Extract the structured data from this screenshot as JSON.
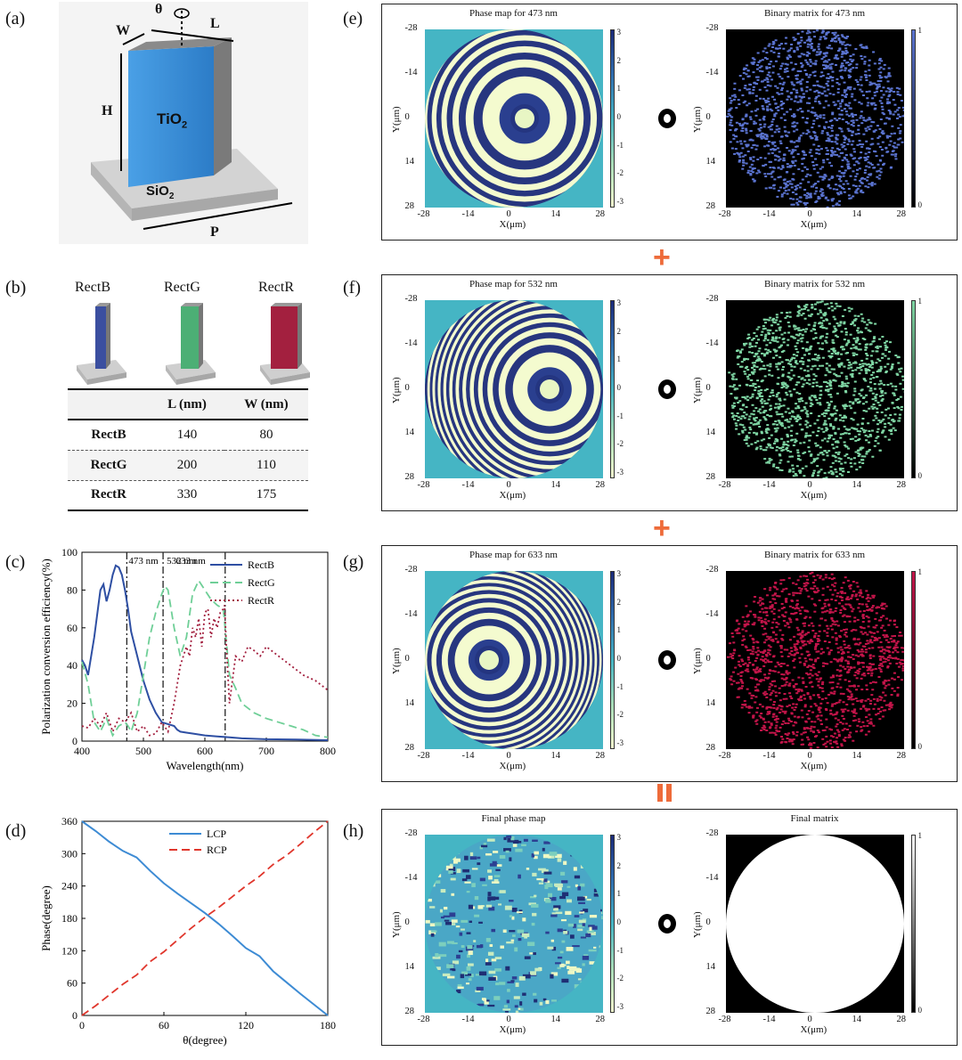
{
  "panel_labels": {
    "a": "(a)",
    "b": "(b)",
    "c": "(c)",
    "d": "(d)",
    "e": "(e)",
    "f": "(f)",
    "g": "(g)",
    "h": "(h)"
  },
  "panel_a": {
    "theta": "θ",
    "w": "W",
    "l": "L",
    "h": "H",
    "tio2_main": "TiO",
    "tio2_sub": "2",
    "sio2_main": "SiO",
    "sio2_sub": "2",
    "p": "P"
  },
  "panel_b": {
    "pillars": [
      "RectB",
      "RectG",
      "RectR"
    ],
    "colors": [
      "#3b4fa0",
      "#4caf75",
      "#a3203f"
    ],
    "table": {
      "headers": [
        "",
        "L (nm)",
        "W (nm)"
      ],
      "rows": [
        {
          "name": "RectB",
          "l": "140",
          "w": "80"
        },
        {
          "name": "RectG",
          "l": "200",
          "w": "110"
        },
        {
          "name": "RectR",
          "l": "330",
          "w": "175"
        }
      ]
    }
  },
  "chart_c": {
    "type": "line",
    "xlabel": "Wavelength(nm)",
    "ylabel": "Polarization conversion efficiency(%)",
    "xlim": [
      400,
      800
    ],
    "ylim": [
      0,
      100
    ],
    "xticks": [
      "400",
      "500",
      "600",
      "700",
      "800"
    ],
    "yticks": [
      "0",
      "20",
      "40",
      "60",
      "80",
      "100"
    ],
    "markers": [
      {
        "x": 473,
        "label": "473 nm"
      },
      {
        "x": 532,
        "label": "532 nm"
      },
      {
        "x": 633,
        "label": "633 nm"
      }
    ],
    "series": [
      {
        "name": "RectB",
        "color": "#2e4fa3",
        "style": "solid",
        "x": [
          400,
          405,
          410,
          420,
          430,
          435,
          440,
          445,
          450,
          455,
          460,
          465,
          470,
          475,
          480,
          490,
          500,
          510,
          520,
          530,
          540,
          550,
          555,
          560,
          570,
          580,
          600,
          620,
          640,
          660,
          700,
          750,
          800
        ],
        "y": [
          43,
          40,
          35,
          55,
          80,
          83,
          74,
          80,
          88,
          93,
          92,
          88,
          80,
          70,
          58,
          45,
          32,
          22,
          15,
          10,
          9,
          8,
          6,
          5,
          4.5,
          4,
          3,
          2.5,
          2,
          1.5,
          1,
          0.8,
          0.5
        ]
      },
      {
        "name": "RectG",
        "color": "#6fcf97",
        "style": "dash",
        "x": [
          400,
          410,
          420,
          430,
          440,
          450,
          460,
          470,
          475,
          480,
          490,
          500,
          510,
          520,
          530,
          535,
          540,
          550,
          560,
          570,
          580,
          590,
          600,
          610,
          620,
          630,
          640,
          650,
          660,
          680,
          700,
          720,
          740,
          760,
          780,
          800
        ],
        "y": [
          42,
          30,
          10,
          5,
          12,
          3,
          8,
          10,
          8,
          5,
          15,
          35,
          55,
          68,
          78,
          82,
          80,
          60,
          45,
          55,
          78,
          85,
          80,
          75,
          72,
          70,
          35,
          28,
          20,
          15,
          12,
          10,
          8,
          6,
          3,
          2
        ]
      },
      {
        "name": "RectR",
        "color": "#a3203f",
        "style": "dot",
        "x": [
          400,
          410,
          420,
          430,
          440,
          450,
          460,
          470,
          480,
          490,
          500,
          510,
          520,
          530,
          540,
          550,
          560,
          570,
          575,
          580,
          585,
          590,
          595,
          600,
          605,
          610,
          615,
          620,
          625,
          630,
          632,
          635,
          640,
          650,
          660,
          670,
          680,
          690,
          700,
          720,
          740,
          760,
          780,
          800
        ],
        "y": [
          8,
          7,
          12,
          8,
          15,
          5,
          12,
          10,
          15,
          5,
          8,
          3,
          4,
          10,
          5,
          20,
          40,
          50,
          45,
          60,
          55,
          65,
          50,
          68,
          70,
          55,
          65,
          60,
          68,
          70,
          72,
          50,
          20,
          45,
          42,
          50,
          48,
          45,
          50,
          45,
          40,
          35,
          32,
          27
        ]
      }
    ]
  },
  "chart_d": {
    "type": "line",
    "xlabel": "θ(degree)",
    "ylabel": "Phase(degree)",
    "xlim": [
      0,
      180
    ],
    "ylim": [
      0,
      360
    ],
    "xticks": [
      "0",
      "60",
      "120",
      "180"
    ],
    "yticks": [
      "0",
      "60",
      "120",
      "180",
      "240",
      "300",
      "360"
    ],
    "series": [
      {
        "name": "LCP",
        "color": "#3d8bd4",
        "style": "solid",
        "x": [
          0,
          10,
          20,
          30,
          40,
          50,
          60,
          70,
          80,
          90,
          100,
          110,
          120,
          130,
          140,
          150,
          160,
          170,
          180
        ],
        "y": [
          360,
          342,
          322,
          305,
          293,
          268,
          245,
          226,
          208,
          190,
          170,
          148,
          125,
          110,
          82,
          61,
          40,
          20,
          0
        ]
      },
      {
        "name": "RCP",
        "color": "#e0362c",
        "style": "dash",
        "x": [
          0,
          10,
          20,
          30,
          40,
          50,
          60,
          70,
          80,
          90,
          100,
          110,
          120,
          130,
          140,
          150,
          160,
          170,
          180
        ],
        "y": [
          0,
          18,
          38,
          58,
          75,
          100,
          118,
          140,
          162,
          182,
          200,
          220,
          240,
          258,
          280,
          297,
          318,
          340,
          360
        ]
      }
    ]
  },
  "rows": [
    {
      "id": "e",
      "phase_title": "Phase map for 473 nm",
      "binary_title": "Binary matrix for 473 nm",
      "color": "#5b74d1",
      "binary_cb_top": "1",
      "binary_cb_bottom": "0"
    },
    {
      "id": "f",
      "phase_title": "Phase map for 532 nm",
      "binary_title": "Binary matrix for 532 nm",
      "color": "#7fd6a4",
      "binary_cb_top": "1",
      "binary_cb_bottom": "0"
    },
    {
      "id": "g",
      "phase_title": "Phase map for 633 nm",
      "binary_title": "Binary matrix for 633 nm",
      "color": "#c4154a",
      "binary_cb_top": "1",
      "binary_cb_bottom": "0"
    },
    {
      "id": "h",
      "phase_title": "Final phase map",
      "binary_title": "Final matrix",
      "color": "#ffffff",
      "binary_cb_top": "1",
      "binary_cb_bottom": "0"
    }
  ],
  "map_axes": {
    "xlabel": "X(μm)",
    "ylabel": "Y(μm)",
    "xticks": [
      "-28",
      "-14",
      "0",
      "14",
      "28"
    ],
    "yticks": [
      "-28",
      "-14",
      "0",
      "14",
      "28"
    ]
  },
  "phase_colorbar": [
    "3",
    "2",
    "1",
    "0",
    "-1",
    "-2",
    "-3"
  ],
  "operators": {
    "plus": "+",
    "equals": "="
  }
}
